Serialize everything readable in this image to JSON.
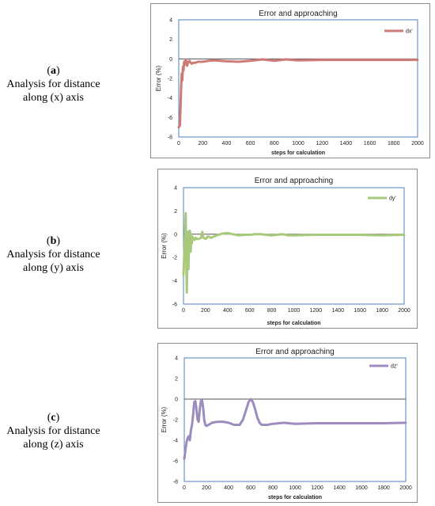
{
  "captions": [
    {
      "letter": "a",
      "line1": "Analysis for distance",
      "line2": "along (x) axis"
    },
    {
      "letter": "b",
      "line1": "Analysis for distance",
      "line2": "along (y) axis"
    },
    {
      "letter": "c",
      "line1": "Analysis for distance",
      "line2": "along (z) axis"
    }
  ],
  "chart_data": [
    {
      "type": "line",
      "title": "Error and approaching",
      "xlabel": "steps for calculation",
      "ylabel": "Error (%)",
      "xlim": [
        0,
        2000
      ],
      "ylim": [
        -8,
        4
      ],
      "xticks": [
        0,
        200,
        400,
        600,
        800,
        1000,
        1200,
        1400,
        1600,
        1800,
        2000
      ],
      "yticks": [
        -8,
        -6,
        -4,
        -2,
        0,
        2,
        4
      ],
      "legend": "top-right",
      "grid": false,
      "series": [
        {
          "name": "dx'",
          "color": "#cd7b77",
          "x": [
            0,
            10,
            20,
            25,
            30,
            35,
            40,
            45,
            50,
            55,
            60,
            65,
            70,
            75,
            80,
            90,
            100,
            110,
            120,
            140,
            160,
            180,
            200,
            250,
            300,
            400,
            500,
            600,
            700,
            800,
            900,
            1000,
            1200,
            1400,
            1600,
            1800,
            2000
          ],
          "y": [
            -7.0,
            -6.8,
            -3.0,
            -1.5,
            -2.2,
            -0.8,
            -1.2,
            -0.3,
            -0.6,
            -0.2,
            -0.1,
            -0.4,
            -0.7,
            -0.5,
            -0.3,
            -0.2,
            -0.4,
            -0.5,
            -0.4,
            -0.4,
            -0.3,
            -0.3,
            -0.3,
            -0.2,
            -0.15,
            -0.25,
            -0.3,
            -0.2,
            -0.05,
            -0.2,
            -0.05,
            -0.15,
            -0.1,
            -0.1,
            -0.1,
            -0.1,
            -0.1
          ]
        }
      ]
    },
    {
      "type": "line",
      "title": "Error and approaching",
      "xlabel": "steps for calculation",
      "ylabel": "Error (%)",
      "xlim": [
        0,
        2000
      ],
      "ylim": [
        -6,
        4
      ],
      "xticks": [
        0,
        200,
        400,
        600,
        800,
        1000,
        1200,
        1400,
        1600,
        1800,
        2000
      ],
      "yticks": [
        -6,
        -4,
        -2,
        0,
        2,
        4
      ],
      "legend": "top-right",
      "grid": false,
      "series": [
        {
          "name": "dy'",
          "color": "#a9c97d",
          "x": [
            0,
            10,
            20,
            25,
            30,
            35,
            40,
            45,
            50,
            55,
            60,
            65,
            70,
            75,
            80,
            90,
            100,
            110,
            120,
            140,
            160,
            170,
            180,
            200,
            220,
            250,
            300,
            350,
            400,
            450,
            500,
            550,
            600,
            650,
            700,
            750,
            800,
            850,
            900,
            950,
            1000,
            1200,
            1400,
            1600,
            1800,
            2000
          ],
          "y": [
            -3.5,
            -1.0,
            1.8,
            -2.0,
            -5.0,
            -1.0,
            0.2,
            -3.0,
            -1.0,
            0.3,
            0.2,
            -1.5,
            -0.5,
            -0.8,
            -0.2,
            -0.4,
            -0.5,
            -0.3,
            -0.4,
            -0.4,
            -0.3,
            0.2,
            -0.3,
            -0.4,
            -0.2,
            -0.3,
            -0.1,
            0.05,
            0.1,
            0.0,
            -0.1,
            -0.05,
            -0.05,
            0.0,
            0.0,
            -0.05,
            -0.1,
            -0.05,
            0.0,
            -0.1,
            -0.1,
            -0.05,
            -0.05,
            -0.05,
            -0.1,
            -0.05
          ]
        }
      ]
    },
    {
      "type": "line",
      "title": "Error and approaching",
      "xlabel": "steps for calculation",
      "ylabel": "Error (%)",
      "xlim": [
        0,
        2000
      ],
      "ylim": [
        -8,
        4
      ],
      "xticks": [
        0,
        200,
        400,
        600,
        800,
        1000,
        1200,
        1400,
        1600,
        1800,
        2000
      ],
      "yticks": [
        -8,
        -6,
        -4,
        -2,
        0,
        2,
        4
      ],
      "legend": "top-right",
      "grid": false,
      "series": [
        {
          "name": "dz'",
          "color": "#9d8cbf",
          "x": [
            0,
            10,
            20,
            30,
            40,
            50,
            60,
            70,
            80,
            90,
            100,
            110,
            120,
            130,
            140,
            150,
            160,
            170,
            180,
            190,
            200,
            220,
            250,
            300,
            350,
            400,
            450,
            500,
            530,
            560,
            580,
            600,
            620,
            640,
            660,
            680,
            700,
            750,
            800,
            900,
            1000,
            1200,
            1400,
            1600,
            1800,
            2000
          ],
          "y": [
            -5.8,
            -5.0,
            -4.2,
            -3.8,
            -3.6,
            -4.0,
            -3.0,
            -2.5,
            -1.5,
            -0.3,
            -0.2,
            -1.0,
            -2.0,
            -2.2,
            -1.0,
            -0.2,
            -0.1,
            -0.8,
            -2.0,
            -2.5,
            -2.6,
            -2.5,
            -2.3,
            -2.2,
            -2.2,
            -2.3,
            -2.5,
            -2.5,
            -2.0,
            -1.0,
            -0.3,
            0.0,
            -0.3,
            -1.0,
            -1.8,
            -2.3,
            -2.5,
            -2.5,
            -2.4,
            -2.3,
            -2.4,
            -2.35,
            -2.35,
            -2.35,
            -2.35,
            -2.3
          ]
        }
      ]
    }
  ]
}
